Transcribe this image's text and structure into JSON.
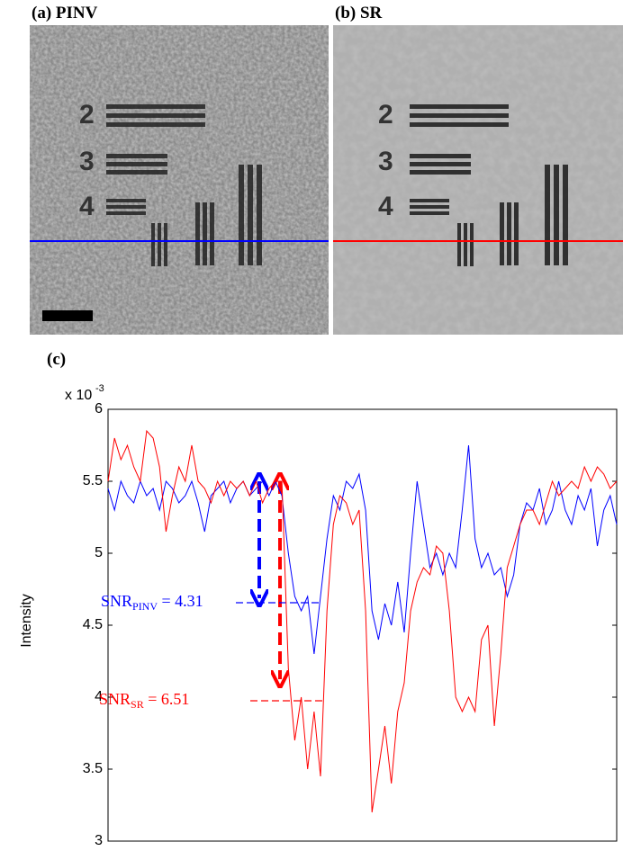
{
  "panels": [
    {
      "label": "(a) PINV",
      "digits": [
        "2",
        "3",
        "4"
      ]
    },
    {
      "label": "(b) SR",
      "digits": [
        "2",
        "3",
        "4"
      ]
    }
  ],
  "chart_data": {
    "type": "line",
    "label": "(c)",
    "multiplier": "x 10",
    "exponent": "-3",
    "ylabel": "Intensity",
    "ylim": [
      3,
      6
    ],
    "yticks": [
      3,
      3.5,
      4,
      4.5,
      5,
      5.5,
      6
    ],
    "series": [
      {
        "color": "#0000ff",
        "values": [
          5.45,
          5.3,
          5.5,
          5.4,
          5.35,
          5.5,
          5.4,
          5.45,
          5.3,
          5.5,
          5.45,
          5.35,
          5.4,
          5.5,
          5.35,
          5.15,
          5.4,
          5.45,
          5.5,
          5.35,
          5.45,
          5.5,
          5.4,
          5.45,
          5.5,
          5.4,
          5.5,
          5.4,
          5.0,
          4.7,
          4.6,
          4.7,
          4.3,
          4.7,
          5.1,
          5.4,
          5.3,
          5.5,
          5.45,
          5.55,
          5.3,
          4.6,
          4.4,
          4.65,
          4.5,
          4.8,
          4.45,
          5.0,
          5.5,
          5.2,
          4.9,
          5.0,
          4.85,
          5.0,
          4.9,
          5.3,
          5.75,
          5.1,
          4.9,
          5.0,
          4.85,
          4.9,
          4.7,
          4.85,
          5.2,
          5.35,
          5.3,
          5.45,
          5.2,
          5.3,
          5.5,
          5.3,
          5.2,
          5.4,
          5.3,
          5.45,
          5.05,
          5.3,
          5.4,
          5.2
        ]
      },
      {
        "color": "#ff0000",
        "values": [
          5.5,
          5.8,
          5.65,
          5.75,
          5.6,
          5.5,
          5.85,
          5.8,
          5.6,
          5.15,
          5.4,
          5.6,
          5.5,
          5.75,
          5.5,
          5.45,
          5.35,
          5.5,
          5.4,
          5.5,
          5.45,
          5.5,
          5.4,
          5.5,
          5.35,
          5.45,
          5.5,
          5.5,
          4.2,
          3.7,
          4.0,
          3.5,
          3.9,
          3.45,
          4.6,
          5.2,
          5.4,
          5.35,
          5.2,
          5.3,
          4.6,
          3.2,
          3.5,
          3.8,
          3.4,
          3.9,
          4.1,
          4.6,
          4.8,
          4.9,
          4.85,
          5.05,
          5.0,
          4.6,
          4.0,
          3.9,
          4.0,
          3.9,
          4.4,
          4.5,
          3.8,
          4.3,
          4.9,
          5.05,
          5.2,
          5.3,
          5.3,
          5.2,
          5.35,
          5.5,
          5.4,
          5.45,
          5.5,
          5.45,
          5.6,
          5.5,
          5.6,
          5.55,
          5.45,
          5.5
        ]
      }
    ],
    "annotations": [
      {
        "text": "SNR",
        "sub": "PINV",
        "rest": " = 4.31",
        "color": "#0000ff"
      },
      {
        "text": "SNR",
        "sub": "SR",
        "rest": " = 6.51",
        "color": "#ff0000"
      }
    ]
  }
}
